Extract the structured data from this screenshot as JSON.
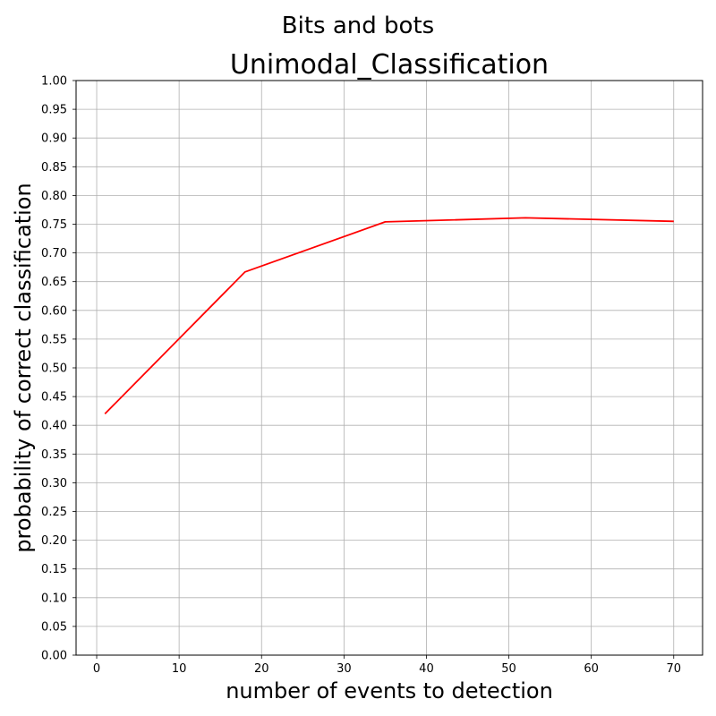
{
  "chart_data": {
    "type": "line",
    "suptitle": "Bits and bots",
    "title": "Unimodal_Classification",
    "xlabel": "number of events to detection",
    "ylabel": "probability of correct classification",
    "xlim": [
      -2.5,
      73.5
    ],
    "ylim": [
      0.0,
      1.0
    ],
    "x_ticks": [
      0,
      10,
      20,
      30,
      40,
      50,
      60,
      70
    ],
    "x_tick_labels": [
      "0",
      "10",
      "20",
      "30",
      "40",
      "50",
      "60",
      "70"
    ],
    "y_ticks": [
      0.0,
      0.05,
      0.1,
      0.15,
      0.2,
      0.25,
      0.3,
      0.35,
      0.4,
      0.45,
      0.5,
      0.55,
      0.6,
      0.65,
      0.7,
      0.75,
      0.8,
      0.85,
      0.9,
      0.95,
      1.0
    ],
    "y_tick_labels": [
      "0.00",
      "0.05",
      "0.10",
      "0.15",
      "0.20",
      "0.25",
      "0.30",
      "0.35",
      "0.40",
      "0.45",
      "0.50",
      "0.55",
      "0.60",
      "0.65",
      "0.70",
      "0.75",
      "0.80",
      "0.85",
      "0.90",
      "0.95",
      "1.00"
    ],
    "grid": true,
    "series": [
      {
        "color": "#ff0000",
        "x": [
          1,
          18,
          35,
          52,
          70
        ],
        "y": [
          0.42,
          0.667,
          0.754,
          0.761,
          0.755
        ]
      }
    ]
  }
}
